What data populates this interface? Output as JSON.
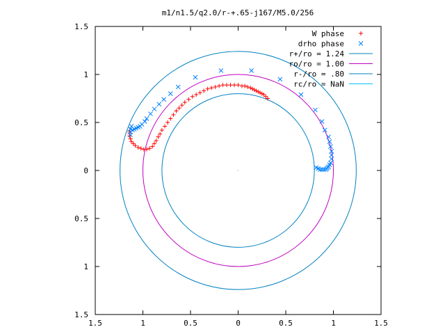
{
  "chart_data": {
    "type": "scatter",
    "title": "m1/n1.5/q2.0/r-+.65-j167/M5.0/256",
    "xlabel": "",
    "ylabel": "",
    "xlim": [
      -1.5,
      1.5
    ],
    "ylim": [
      -1.5,
      1.5
    ],
    "xticks": [
      -1.5,
      -1,
      -0.5,
      0,
      0.5,
      1,
      1.5
    ],
    "xtick_labels": [
      "1.5",
      "1",
      "0.5",
      "0",
      "0.5",
      "1",
      "1.5"
    ],
    "yticks": [
      1.5,
      1,
      0.5,
      0,
      -0.5,
      -1,
      -1.5
    ],
    "ytick_labels": [
      "1.5",
      "1",
      "0.5",
      "0",
      "0.5",
      "1",
      "1.5"
    ],
    "grid": false,
    "legend_position": "top-right",
    "series": [
      {
        "name": "W phase",
        "kind": "points",
        "marker": "plus",
        "color": "#ff0000",
        "points": [
          [
            0.31,
            0.75
          ],
          [
            0.29,
            0.77
          ],
          [
            0.27,
            0.79
          ],
          [
            0.25,
            0.8
          ],
          [
            0.23,
            0.81
          ],
          [
            0.21,
            0.82
          ],
          [
            0.19,
            0.83
          ],
          [
            0.17,
            0.84
          ],
          [
            0.15,
            0.85
          ],
          [
            0.13,
            0.86
          ],
          [
            0.1,
            0.87
          ],
          [
            0.07,
            0.88
          ],
          [
            0.04,
            0.88
          ],
          [
            0.0,
            0.89
          ],
          [
            -0.04,
            0.89
          ],
          [
            -0.08,
            0.89
          ],
          [
            -0.12,
            0.89
          ],
          [
            -0.16,
            0.89
          ],
          [
            -0.2,
            0.88
          ],
          [
            -0.24,
            0.87
          ],
          [
            -0.28,
            0.86
          ],
          [
            -0.32,
            0.85
          ],
          [
            -0.36,
            0.83
          ],
          [
            -0.4,
            0.81
          ],
          [
            -0.44,
            0.79
          ],
          [
            -0.48,
            0.77
          ],
          [
            -0.52,
            0.74
          ],
          [
            -0.56,
            0.71
          ],
          [
            -0.59,
            0.68
          ],
          [
            -0.62,
            0.65
          ],
          [
            -0.65,
            0.62
          ],
          [
            -0.68,
            0.58
          ],
          [
            -0.71,
            0.54
          ],
          [
            -0.74,
            0.5
          ],
          [
            -0.77,
            0.46
          ],
          [
            -0.8,
            0.42
          ],
          [
            -0.82,
            0.38
          ],
          [
            -0.84,
            0.35
          ],
          [
            -0.86,
            0.31
          ],
          [
            -0.88,
            0.28
          ],
          [
            -0.9,
            0.25
          ],
          [
            -0.93,
            0.23
          ],
          [
            -0.96,
            0.22
          ],
          [
            -0.99,
            0.22
          ],
          [
            -1.02,
            0.23
          ],
          [
            -1.05,
            0.24
          ],
          [
            -1.08,
            0.26
          ],
          [
            -1.1,
            0.28
          ],
          [
            -1.12,
            0.3
          ],
          [
            -1.13,
            0.33
          ],
          [
            -1.14,
            0.36
          ],
          [
            -1.14,
            0.39
          ],
          [
            -1.14,
            0.41
          ]
        ]
      },
      {
        "name": "drho phase",
        "kind": "points",
        "marker": "cross",
        "color": "#0080ff",
        "points": [
          [
            -1.13,
            0.37
          ],
          [
            -1.13,
            0.4
          ],
          [
            -1.13,
            0.43
          ],
          [
            -1.12,
            0.46
          ],
          [
            -1.11,
            0.42
          ],
          [
            -1.09,
            0.43
          ],
          [
            -1.07,
            0.44
          ],
          [
            -1.05,
            0.45
          ],
          [
            -1.03,
            0.46
          ],
          [
            -1.01,
            0.48
          ],
          [
            -0.98,
            0.51
          ],
          [
            -0.96,
            0.54
          ],
          [
            -0.92,
            0.59
          ],
          [
            -0.88,
            0.64
          ],
          [
            -0.83,
            0.69
          ],
          [
            -0.78,
            0.74
          ],
          [
            -0.71,
            0.8
          ],
          [
            -0.63,
            0.87
          ],
          [
            -0.45,
            0.97
          ],
          [
            -0.18,
            1.04
          ],
          [
            0.14,
            1.04
          ],
          [
            0.44,
            0.95
          ],
          [
            0.66,
            0.79
          ],
          [
            0.81,
            0.63
          ],
          [
            0.88,
            0.51
          ],
          [
            0.91,
            0.42
          ],
          [
            0.95,
            0.35
          ],
          [
            0.96,
            0.3
          ],
          [
            0.97,
            0.25
          ],
          [
            0.98,
            0.2
          ],
          [
            0.98,
            0.16
          ],
          [
            0.98,
            0.12
          ],
          [
            0.97,
            0.08
          ],
          [
            0.96,
            0.06
          ],
          [
            0.95,
            0.04
          ],
          [
            0.94,
            0.03
          ],
          [
            0.93,
            0.02
          ],
          [
            0.92,
            0.01
          ],
          [
            0.9,
            0.01
          ],
          [
            0.88,
            0.01
          ],
          [
            0.86,
            0.01
          ],
          [
            0.84,
            0.02
          ],
          [
            0.82,
            0.03
          ]
        ]
      },
      {
        "name": "r+/ro = 1.24",
        "kind": "circle",
        "radius": 1.24,
        "color": "#0080c0"
      },
      {
        "name": "ro/ro = 1.00",
        "kind": "circle",
        "radius": 1.0,
        "color": "#c000c0"
      },
      {
        "name": "r-/ro = .80",
        "kind": "circle",
        "radius": 0.8,
        "color": "#0080c0"
      },
      {
        "name": "rc/ro = NaN",
        "kind": "circle",
        "radius": null,
        "color": "#00c0ff"
      }
    ]
  }
}
